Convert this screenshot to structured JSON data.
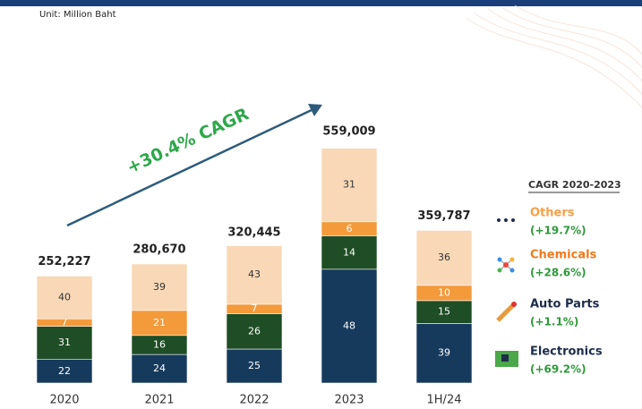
{
  "chart_data": {
    "type": "stacked_bar_percent",
    "unit": "Unit: Million Baht",
    "annotation": "+30.4% CAGR",
    "legend_title": "CAGR 2020-2023",
    "categories": [
      "2020",
      "2021",
      "2022",
      "2023",
      "1H/24"
    ],
    "totals": [
      252227,
      280670,
      320445,
      559009,
      359787
    ],
    "total_labels": [
      "252,227",
      "280,670",
      "320,445",
      "559,009",
      "359,787"
    ],
    "series": [
      {
        "name": "Electronics",
        "cagr": "(+69.2%)",
        "color": "#163a5c",
        "legend_color": "#1d2d4a",
        "values": [
          22,
          24,
          25,
          48,
          39
        ]
      },
      {
        "name": "Auto Parts",
        "cagr": "(+1.1%)",
        "color": "#1f4d25",
        "legend_color": "#1d2d4a",
        "values": [
          31,
          16,
          26,
          14,
          15
        ]
      },
      {
        "name": "Chemicals",
        "cagr": "(+28.6%)",
        "color": "#f39a3b",
        "legend_color": "#ee7a1e",
        "values": [
          7,
          21,
          7,
          6,
          10
        ]
      },
      {
        "name": "Others",
        "cagr": "(+19.7%)",
        "color": "#f8d8b6",
        "legend_color": "#f5a04a",
        "values": [
          40,
          39,
          43,
          31,
          36
        ]
      }
    ]
  }
}
